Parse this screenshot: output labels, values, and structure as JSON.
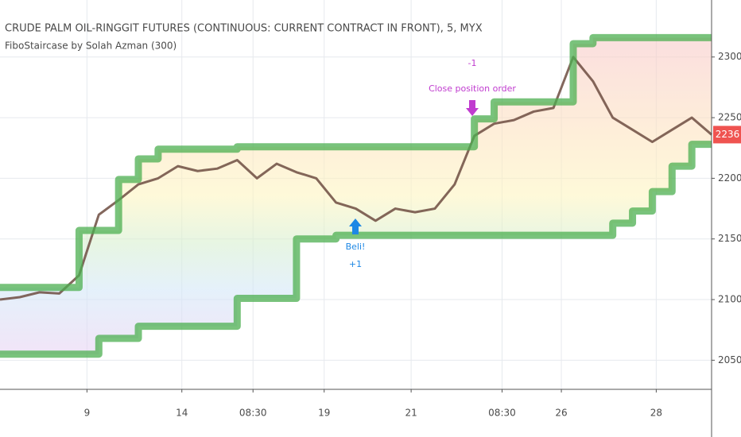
{
  "chart_data": {
    "type": "line",
    "title": "CRUDE PALM OIL-RINGGIT FUTURES (CONTINUOUS: CURRENT CONTRACT IN FRONT), 5, MYX",
    "subtitle": "FiboStaircase by Solah Azman (300)",
    "annotations": [
      "-1",
      "Close position order",
      "Beli!",
      "+1"
    ],
    "x": [
      0,
      5,
      10,
      15,
      20,
      25,
      30,
      35,
      40,
      45,
      50,
      55,
      60,
      65,
      70,
      75,
      80,
      85,
      90,
      95,
      100,
      105,
      110,
      115,
      120,
      125,
      130,
      135,
      140,
      145,
      150,
      155,
      160,
      165,
      170,
      175,
      180
    ],
    "series": [
      {
        "color": "#6d4c41",
        "values": [
          2100,
          2102,
          2106,
          2105,
          2120,
          2170,
          2182,
          2195,
          2200,
          2210,
          2206,
          2208,
          2215,
          2200,
          2212,
          2205,
          2200,
          2180,
          2175,
          2165,
          2175,
          2172,
          2175,
          2195,
          2235,
          2245,
          2248,
          2255,
          2258,
          2300,
          2280,
          2250,
          2240,
          2230,
          2240,
          2250,
          2236
        ]
      },
      {
        "color": "#4caf50",
        "step": true,
        "values": [
          2110,
          2110,
          2110,
          2110,
          2157,
          2157,
          2199,
          2216,
          2224,
          2224,
          2224,
          2224,
          2226,
          2226,
          2226,
          2226,
          2226,
          2226,
          2226,
          2226,
          2226,
          2226,
          2226,
          2226,
          2249,
          2263,
          2263,
          2263,
          2263,
          2311,
          2316,
          2316,
          2316,
          2316,
          2316,
          2316,
          2316
        ]
      },
      {
        "color": "#4caf50",
        "step": true,
        "values": [
          2055,
          2055,
          2055,
          2055,
          2055,
          2068,
          2068,
          2078,
          2078,
          2078,
          2078,
          2078,
          2101,
          2101,
          2101,
          2150,
          2150,
          2153,
          2153,
          2153,
          2153,
          2153,
          2153,
          2153,
          2153,
          2153,
          2153,
          2153,
          2153,
          2153,
          2153,
          2163,
          2173,
          2189,
          2210,
          2228,
          2228
        ]
      }
    ],
    "xlim": [
      0,
      180
    ],
    "xticks": [
      {
        "value": 22,
        "label": "9"
      },
      {
        "value": 46,
        "label": "14"
      },
      {
        "value": 64,
        "label": "08:30"
      },
      {
        "value": 82,
        "label": "19"
      },
      {
        "value": 104,
        "label": "21"
      },
      {
        "value": 127,
        "label": "08:30"
      },
      {
        "value": 142,
        "label": "26"
      },
      {
        "value": 166,
        "label": "28"
      }
    ],
    "ylim": [
      2026,
      2347
    ],
    "yticks": [
      2050,
      2100,
      2150,
      2200,
      2250,
      2300
    ],
    "grid": true
  }
}
